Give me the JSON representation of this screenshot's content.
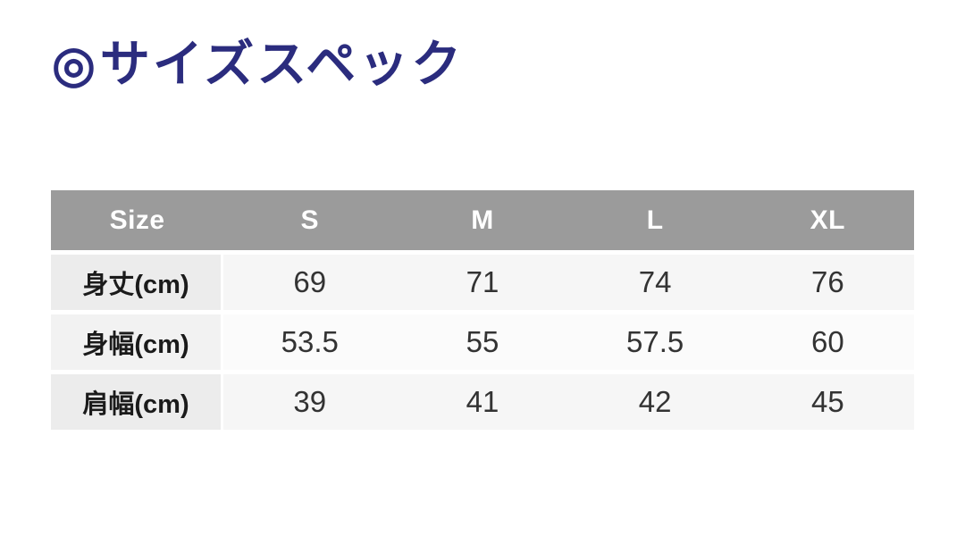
{
  "title": {
    "bullet": "◎",
    "text": "サイズスペック"
  },
  "chart_data": {
    "type": "table",
    "title": "◎サイズスペック",
    "columns": [
      "Size",
      "S",
      "M",
      "L",
      "XL"
    ],
    "rows": [
      {
        "label": "身丈(cm)",
        "values": [
          "69",
          "71",
          "74",
          "76"
        ]
      },
      {
        "label": "身幅(cm)",
        "values": [
          "53.5",
          "55",
          "57.5",
          "60"
        ]
      },
      {
        "label": "肩幅(cm)",
        "values": [
          "39",
          "41",
          "42",
          "45"
        ]
      }
    ]
  },
  "colors": {
    "title_navy": "#2b2c7e",
    "header_bg": "#9b9b9b",
    "header_text": "#ffffff",
    "label_cell_bg": "#ececec",
    "data_cell_bg": "#f6f6f6",
    "value_text": "#333333",
    "page_bg": "#ffffff"
  }
}
